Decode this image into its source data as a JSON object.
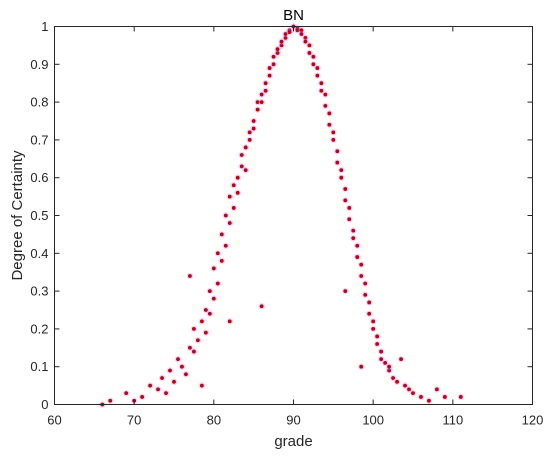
{
  "chart_data": {
    "type": "scatter",
    "title": "BN",
    "xlabel": "grade",
    "ylabel": "Degree of Certainty",
    "xlim": [
      60,
      120
    ],
    "ylim": [
      0,
      1
    ],
    "xticks": [
      "60",
      "70",
      "80",
      "90",
      "100",
      "110",
      "120"
    ],
    "yticks": [
      "0",
      "0.1",
      "0.2",
      "0.3",
      "0.4",
      "0.5",
      "0.6",
      "0.7",
      "0.8",
      "0.9",
      "1"
    ],
    "grid": false,
    "legend": "none",
    "colors": {
      "point_fill": "#cc0000",
      "point_edge": "#8b1a1a",
      "halo": "#ff66ff"
    },
    "series": [
      {
        "values": [
          [
            66.0,
            0.0
          ],
          [
            67.0,
            0.01
          ],
          [
            69.0,
            0.03
          ],
          [
            70.0,
            0.01
          ],
          [
            71.0,
            0.02
          ],
          [
            72.0,
            0.05
          ],
          [
            73.0,
            0.04
          ],
          [
            73.5,
            0.07
          ],
          [
            74.0,
            0.03
          ],
          [
            74.5,
            0.09
          ],
          [
            75.0,
            0.06
          ],
          [
            75.5,
            0.12
          ],
          [
            76.0,
            0.1
          ],
          [
            76.5,
            0.08
          ],
          [
            77.0,
            0.15
          ],
          [
            77.0,
            0.34
          ],
          [
            77.5,
            0.14
          ],
          [
            77.5,
            0.2
          ],
          [
            78.0,
            0.17
          ],
          [
            78.5,
            0.22
          ],
          [
            78.5,
            0.05
          ],
          [
            79.0,
            0.25
          ],
          [
            79.0,
            0.19
          ],
          [
            79.5,
            0.3
          ],
          [
            79.5,
            0.24
          ],
          [
            80.0,
            0.28
          ],
          [
            80.0,
            0.36
          ],
          [
            80.5,
            0.32
          ],
          [
            80.5,
            0.4
          ],
          [
            81.0,
            0.38
          ],
          [
            81.0,
            0.45
          ],
          [
            81.5,
            0.42
          ],
          [
            81.5,
            0.5
          ],
          [
            82.0,
            0.48
          ],
          [
            82.0,
            0.55
          ],
          [
            82.0,
            0.22
          ],
          [
            82.5,
            0.52
          ],
          [
            82.5,
            0.58
          ],
          [
            83.0,
            0.6
          ],
          [
            83.0,
            0.56
          ],
          [
            83.5,
            0.63
          ],
          [
            83.5,
            0.66
          ],
          [
            84.0,
            0.68
          ],
          [
            84.0,
            0.62
          ],
          [
            84.5,
            0.72
          ],
          [
            84.5,
            0.7
          ],
          [
            85.0,
            0.75
          ],
          [
            85.0,
            0.73
          ],
          [
            85.5,
            0.78
          ],
          [
            85.5,
            0.8
          ],
          [
            86.0,
            0.82
          ],
          [
            86.0,
            0.8
          ],
          [
            86.0,
            0.26
          ],
          [
            86.5,
            0.85
          ],
          [
            86.5,
            0.83
          ],
          [
            87.0,
            0.87
          ],
          [
            87.0,
            0.89
          ],
          [
            87.5,
            0.9
          ],
          [
            87.5,
            0.92
          ],
          [
            88.0,
            0.93
          ],
          [
            88.0,
            0.94
          ],
          [
            88.5,
            0.95
          ],
          [
            88.5,
            0.96
          ],
          [
            89.0,
            0.97
          ],
          [
            89.0,
            0.98
          ],
          [
            89.5,
            0.99
          ],
          [
            89.5,
            0.985
          ],
          [
            90.0,
            1.0
          ],
          [
            90.5,
            0.995
          ],
          [
            90.5,
            0.99
          ],
          [
            91.0,
            0.99
          ],
          [
            91.0,
            0.98
          ],
          [
            91.5,
            0.97
          ],
          [
            91.5,
            0.96
          ],
          [
            92.0,
            0.95
          ],
          [
            92.0,
            0.93
          ],
          [
            92.5,
            0.92
          ],
          [
            92.5,
            0.9
          ],
          [
            93.0,
            0.89
          ],
          [
            93.0,
            0.87
          ],
          [
            93.5,
            0.85
          ],
          [
            93.5,
            0.83
          ],
          [
            94.0,
            0.82
          ],
          [
            94.0,
            0.79
          ],
          [
            94.5,
            0.77
          ],
          [
            94.5,
            0.74
          ],
          [
            95.0,
            0.72
          ],
          [
            95.0,
            0.7
          ],
          [
            95.5,
            0.67
          ],
          [
            95.5,
            0.64
          ],
          [
            96.0,
            0.62
          ],
          [
            96.0,
            0.6
          ],
          [
            96.5,
            0.57
          ],
          [
            96.5,
            0.54
          ],
          [
            96.5,
            0.3
          ],
          [
            97.0,
            0.52
          ],
          [
            97.0,
            0.49
          ],
          [
            97.5,
            0.46
          ],
          [
            97.5,
            0.44
          ],
          [
            98.0,
            0.42
          ],
          [
            98.0,
            0.39
          ],
          [
            98.5,
            0.37
          ],
          [
            98.5,
            0.34
          ],
          [
            98.5,
            0.1
          ],
          [
            99.0,
            0.32
          ],
          [
            99.0,
            0.29
          ],
          [
            99.5,
            0.27
          ],
          [
            99.5,
            0.24
          ],
          [
            100.0,
            0.22
          ],
          [
            100.0,
            0.2
          ],
          [
            100.5,
            0.18
          ],
          [
            100.5,
            0.16
          ],
          [
            101.0,
            0.14
          ],
          [
            101.0,
            0.12
          ],
          [
            101.5,
            0.11
          ],
          [
            102.0,
            0.09
          ],
          [
            102.0,
            0.1
          ],
          [
            102.5,
            0.07
          ],
          [
            103.0,
            0.06
          ],
          [
            103.5,
            0.12
          ],
          [
            104.0,
            0.05
          ],
          [
            104.5,
            0.04
          ],
          [
            105.0,
            0.03
          ],
          [
            106.0,
            0.02
          ],
          [
            107.0,
            0.01
          ],
          [
            108.0,
            0.04
          ],
          [
            109.0,
            0.02
          ],
          [
            111.0,
            0.02
          ]
        ]
      }
    ]
  }
}
